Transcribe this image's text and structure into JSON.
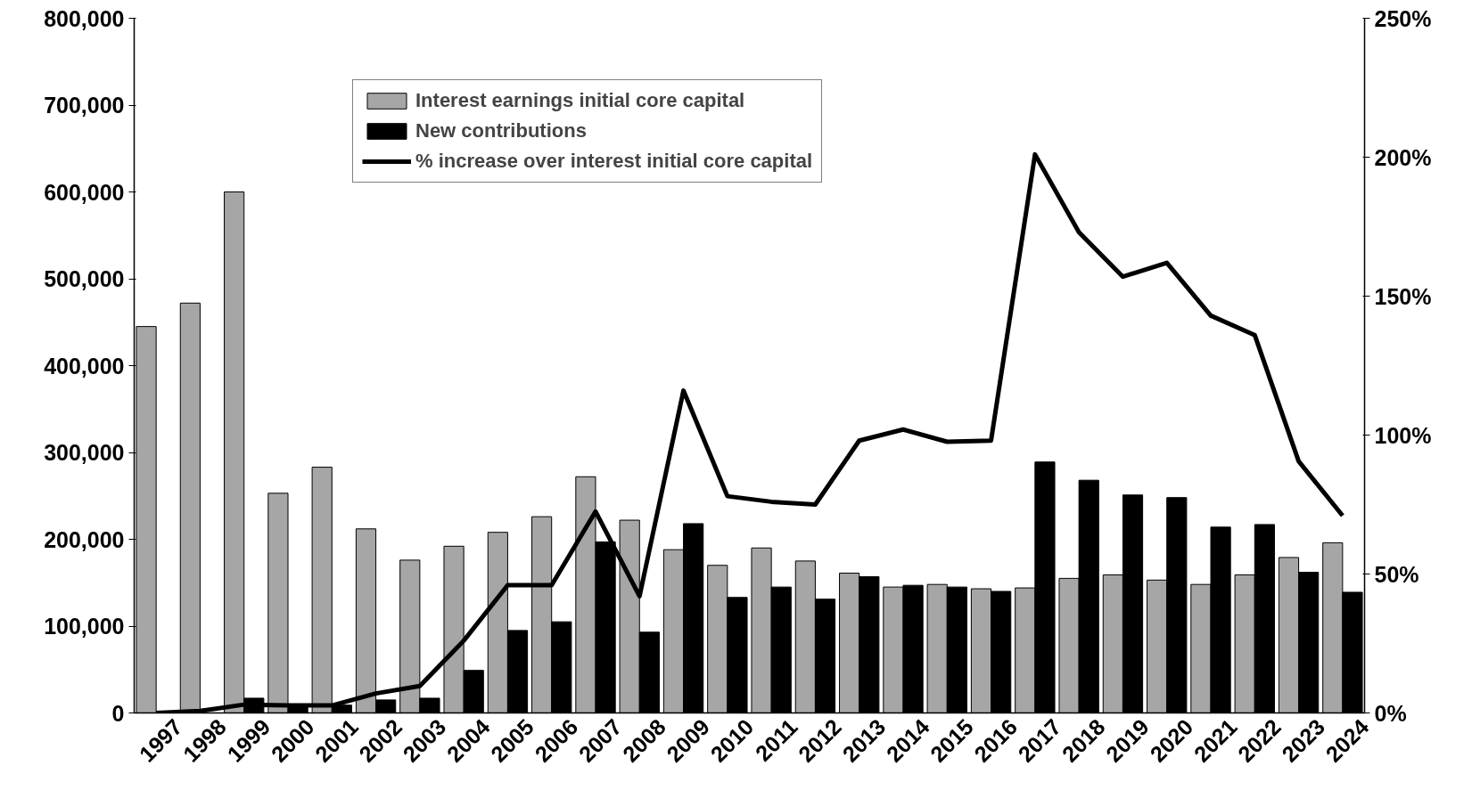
{
  "chart_data": {
    "type": "bar",
    "categories": [
      "1997",
      "1998",
      "1999",
      "2000",
      "2001",
      "2002",
      "2003",
      "2004",
      "2005",
      "2006",
      "2007",
      "2008",
      "2009",
      "2010",
      "2011",
      "2012",
      "2013",
      "2014",
      "2015",
      "2016",
      "2017",
      "2018",
      "2019",
      "2020",
      "2021",
      "2022",
      "2023",
      "2024"
    ],
    "series": [
      {
        "name": "Interest earnings initial core capital",
        "color": "#a6a6a6",
        "values": [
          445000,
          472000,
          600000,
          253000,
          283000,
          212000,
          176000,
          192000,
          208000,
          226000,
          272000,
          222000,
          188000,
          170000,
          190000,
          175000,
          161000,
          145000,
          148000,
          143000,
          144000,
          155000,
          159000,
          153000,
          148000,
          159000,
          179000,
          196000
        ]
      },
      {
        "name": "New contributions",
        "color": "#000000",
        "values": [
          0,
          0,
          17000,
          9000,
          9000,
          15000,
          17000,
          49000,
          95000,
          105000,
          197000,
          93000,
          218000,
          133000,
          145000,
          131000,
          157000,
          147000,
          145000,
          140000,
          289000,
          268000,
          251000,
          248000,
          214000,
          217000,
          162000,
          139000
        ]
      },
      {
        "name": "% increase over interest initial core capital",
        "type": "line",
        "axis": "y2",
        "color": "#000000",
        "values": [
          0,
          0.7,
          3,
          2.7,
          2.7,
          7,
          9.7,
          26,
          46,
          46,
          72.5,
          42,
          116,
          78,
          76,
          75,
          98,
          102,
          97.6,
          98,
          201,
          173,
          157,
          162,
          143,
          136,
          90.6,
          71
        ]
      }
    ],
    "ylim": [
      0,
      800000
    ],
    "yticks": [
      {
        "value": 0,
        "label": "0"
      },
      {
        "value": 100000,
        "label": "100,000"
      },
      {
        "value": 200000,
        "label": "200,000"
      },
      {
        "value": 300000,
        "label": "300,000"
      },
      {
        "value": 400000,
        "label": "400,000"
      },
      {
        "value": 500000,
        "label": "500,000"
      },
      {
        "value": 600000,
        "label": "600,000"
      },
      {
        "value": 700000,
        "label": "700,000"
      },
      {
        "value": 800000,
        "label": "800,000"
      }
    ],
    "y2lim": [
      0,
      250
    ],
    "y2ticks": [
      {
        "value": 0,
        "label": "0%"
      },
      {
        "value": 50,
        "label": "50%"
      },
      {
        "value": 100,
        "label": "100%"
      },
      {
        "value": 150,
        "label": "150%"
      },
      {
        "value": 200,
        "label": "200%"
      },
      {
        "value": 250,
        "label": "250%"
      }
    ],
    "legend": "top left"
  }
}
